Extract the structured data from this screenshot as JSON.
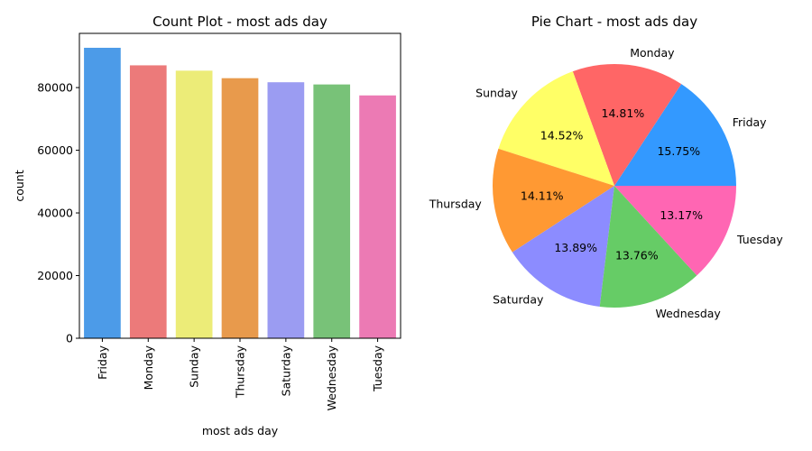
{
  "chart_data": [
    {
      "type": "bar",
      "title": "Count Plot - most ads day",
      "xlabel": "most ads day",
      "ylabel": "count",
      "categories": [
        "Friday",
        "Monday",
        "Sunday",
        "Thursday",
        "Saturday",
        "Wednesday",
        "Tuesday"
      ],
      "values": [
        92700,
        87100,
        85400,
        83000,
        81700,
        81000,
        77500
      ],
      "colors": [
        "#4c9be8",
        "#ec7a7a",
        "#ecec78",
        "#e89a4c",
        "#9b9cf2",
        "#78c278",
        "#ec7ab4"
      ],
      "yticks": [
        0,
        20000,
        40000,
        60000,
        80000
      ],
      "ylim": [
        0,
        97300
      ],
      "grid": false,
      "legend": "none"
    },
    {
      "type": "pie",
      "title": "Pie Chart - most ads day",
      "labels": [
        "Friday",
        "Monday",
        "Sunday",
        "Thursday",
        "Saturday",
        "Wednesday",
        "Tuesday"
      ],
      "percents": [
        "15.75%",
        "14.81%",
        "14.52%",
        "14.11%",
        "13.89%",
        "13.76%",
        "13.17%"
      ],
      "values": [
        15.75,
        14.81,
        14.52,
        14.11,
        13.89,
        13.76,
        13.17
      ],
      "colors": [
        "#3399ff",
        "#ff6666",
        "#ffff66",
        "#ff9933",
        "#8c8cff",
        "#66cc66",
        "#ff66b3"
      ],
      "start_angle_deg": 0,
      "direction": "counterclockwise",
      "legend": "none"
    }
  ]
}
